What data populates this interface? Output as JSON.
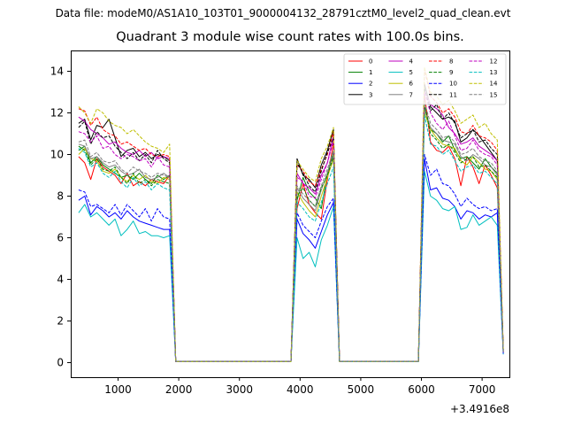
{
  "chart_data": {
    "type": "line",
    "suptitle": "Data file: modeM0/AS1A10_103T01_9000004132_28791cztM0_level2_quad_clean.evt",
    "title": "Quadrant 3 module wise count rates with 100.0s bins.",
    "xlabel": "",
    "ylabel": "",
    "x_offset_label": "+3.4916e8",
    "xlim": [
      220,
      7450
    ],
    "ylim": [
      -0.7,
      15.0
    ],
    "xticks": [
      1000,
      2000,
      3000,
      4000,
      5000,
      6000,
      7000
    ],
    "yticks": [
      0,
      2,
      4,
      6,
      8,
      10,
      12,
      14
    ],
    "legend_position": "top-right",
    "x": [
      350,
      450,
      550,
      650,
      750,
      850,
      950,
      1050,
      1150,
      1250,
      1350,
      1450,
      1550,
      1650,
      1750,
      1850,
      1950,
      2050,
      2250,
      2450,
      2650,
      2850,
      3050,
      3250,
      3450,
      3650,
      3850,
      3950,
      4050,
      4150,
      4250,
      4350,
      4450,
      4550,
      4650,
      4750,
      4950,
      5150,
      5350,
      5550,
      5750,
      5950,
      6050,
      6150,
      6250,
      6350,
      6450,
      6550,
      6650,
      6750,
      6850,
      6950,
      7050,
      7150,
      7250,
      7350
    ],
    "series": [
      {
        "name": "0",
        "color": "#ff0000",
        "dash": false,
        "values": [
          9.9,
          9.6,
          8.8,
          9.8,
          9.4,
          9.2,
          9.0,
          8.6,
          9.1,
          8.5,
          8.7,
          8.5,
          8.8,
          8.7,
          8.6,
          9.0,
          0.05,
          0.05,
          0.05,
          0.05,
          0.05,
          0.05,
          0.05,
          0.05,
          0.05,
          0.05,
          0.05,
          7.4,
          8.6,
          7.6,
          7.2,
          6.9,
          8.8,
          10.6,
          0.05,
          0.05,
          0.05,
          0.05,
          0.05,
          0.05,
          0.05,
          0.05,
          12.9,
          10.6,
          10.2,
          10.1,
          10.4,
          9.8,
          8.5,
          9.9,
          9.4,
          8.6,
          9.5,
          9.0,
          8.4,
          0.5
        ]
      },
      {
        "name": "1",
        "color": "#008000",
        "dash": false,
        "values": [
          10.2,
          10.4,
          9.6,
          9.9,
          9.5,
          9.3,
          9.1,
          8.9,
          9.0,
          8.8,
          9.1,
          8.8,
          8.6,
          9.0,
          8.8,
          9.0,
          0.05,
          0.05,
          0.05,
          0.05,
          0.05,
          0.05,
          0.05,
          0.05,
          0.05,
          0.05,
          0.05,
          7.8,
          8.9,
          8.2,
          7.9,
          7.4,
          9.1,
          10.1,
          0.05,
          0.05,
          0.05,
          0.05,
          0.05,
          0.05,
          0.05,
          0.05,
          12.3,
          11.2,
          11.0,
          10.6,
          10.9,
          10.2,
          9.8,
          9.9,
          9.6,
          9.3,
          9.8,
          9.4,
          9.1,
          0.5
        ]
      },
      {
        "name": "2",
        "color": "#0000ff",
        "dash": false,
        "values": [
          7.8,
          8.0,
          7.1,
          7.5,
          7.3,
          7.0,
          7.2,
          6.9,
          7.3,
          7.0,
          6.8,
          6.7,
          6.6,
          6.5,
          6.4,
          6.4,
          0.05,
          0.05,
          0.05,
          0.05,
          0.05,
          0.05,
          0.05,
          0.05,
          0.05,
          0.05,
          0.05,
          6.9,
          6.2,
          5.9,
          5.5,
          6.3,
          7.1,
          7.7,
          0.05,
          0.05,
          0.05,
          0.05,
          0.05,
          0.05,
          0.05,
          0.05,
          9.8,
          8.3,
          8.4,
          7.9,
          7.8,
          7.5,
          6.9,
          7.3,
          7.2,
          6.9,
          7.1,
          7.0,
          7.2,
          0.4
        ]
      },
      {
        "name": "3",
        "color": "#000000",
        "dash": false,
        "values": [
          11.5,
          11.7,
          10.7,
          11.4,
          11.3,
          11.7,
          10.8,
          9.9,
          10.2,
          10.3,
          9.9,
          10.1,
          9.8,
          10.0,
          9.9,
          9.7,
          0.05,
          0.05,
          0.05,
          0.05,
          0.05,
          0.05,
          0.05,
          0.05,
          0.05,
          0.05,
          0.05,
          9.8,
          9.0,
          8.8,
          8.4,
          9.5,
          10.2,
          11.2,
          0.05,
          0.05,
          0.05,
          0.05,
          0.05,
          0.05,
          0.05,
          0.05,
          13.4,
          12.3,
          12.0,
          11.7,
          11.8,
          11.6,
          10.6,
          10.8,
          11.2,
          10.9,
          10.5,
          10.1,
          9.7,
          0.6
        ]
      },
      {
        "name": "4",
        "color": "#bf00bf",
        "dash": false,
        "values": [
          11.8,
          11.6,
          11.2,
          11.0,
          10.8,
          10.5,
          10.6,
          10.3,
          10.1,
          10.0,
          10.2,
          9.9,
          10.1,
          9.8,
          9.9,
          9.8,
          0.05,
          0.05,
          0.05,
          0.05,
          0.05,
          0.05,
          0.05,
          0.05,
          0.05,
          0.05,
          0.05,
          9.1,
          8.6,
          8.4,
          8.1,
          9.0,
          9.6,
          10.9,
          0.05,
          0.05,
          0.05,
          0.05,
          0.05,
          0.05,
          0.05,
          0.05,
          13.1,
          12.4,
          12.2,
          11.9,
          11.3,
          11.0,
          10.5,
          10.6,
          10.8,
          10.4,
          10.2,
          10.0,
          9.7,
          0.5
        ]
      },
      {
        "name": "5",
        "color": "#00bfbf",
        "dash": false,
        "values": [
          7.2,
          7.6,
          7.0,
          7.2,
          6.9,
          6.6,
          6.9,
          6.1,
          6.4,
          6.8,
          6.2,
          6.3,
          6.1,
          6.1,
          6.0,
          6.1,
          0.05,
          0.05,
          0.05,
          0.05,
          0.05,
          0.05,
          0.05,
          0.05,
          0.05,
          0.05,
          0.05,
          6.0,
          5.0,
          5.3,
          4.6,
          5.9,
          6.6,
          7.5,
          0.05,
          0.05,
          0.05,
          0.05,
          0.05,
          0.05,
          0.05,
          0.05,
          9.2,
          8.0,
          7.8,
          7.4,
          7.3,
          7.5,
          6.4,
          6.5,
          7.1,
          6.6,
          6.8,
          7.0,
          6.6,
          0.4
        ]
      },
      {
        "name": "6",
        "color": "#bfbf00",
        "dash": false,
        "values": [
          10.0,
          10.3,
          9.8,
          9.7,
          9.2,
          9.1,
          9.3,
          8.9,
          8.7,
          9.0,
          8.8,
          9.0,
          8.7,
          8.6,
          8.9,
          8.8,
          0.05,
          0.05,
          0.05,
          0.05,
          0.05,
          0.05,
          0.05,
          0.05,
          0.05,
          0.05,
          0.05,
          8.2,
          7.7,
          7.3,
          7.0,
          8.0,
          8.9,
          9.8,
          0.05,
          0.05,
          0.05,
          0.05,
          0.05,
          0.05,
          0.05,
          0.05,
          12.0,
          11.2,
          10.8,
          10.5,
          10.4,
          10.3,
          9.7,
          9.5,
          9.9,
          9.6,
          9.3,
          9.2,
          8.8,
          0.5
        ]
      },
      {
        "name": "7",
        "color": "#808080",
        "dash": false,
        "values": [
          10.5,
          10.4,
          9.8,
          9.9,
          9.6,
          9.4,
          9.5,
          9.2,
          9.0,
          9.1,
          9.3,
          8.9,
          8.8,
          8.9,
          9.1,
          8.9,
          0.05,
          0.05,
          0.05,
          0.05,
          0.05,
          0.05,
          0.05,
          0.05,
          0.05,
          0.05,
          0.05,
          8.4,
          7.9,
          7.6,
          7.3,
          8.3,
          9.1,
          10.0,
          0.05,
          0.05,
          0.05,
          0.05,
          0.05,
          0.05,
          0.05,
          0.05,
          12.2,
          11.3,
          11.0,
          10.7,
          10.6,
          10.5,
          9.9,
          9.7,
          10.0,
          9.8,
          9.5,
          9.4,
          9.0,
          0.5
        ]
      },
      {
        "name": "8",
        "color": "#ff0000",
        "dash": true,
        "values": [
          12.2,
          12.1,
          11.4,
          11.8,
          11.2,
          11.0,
          10.9,
          10.5,
          10.6,
          10.4,
          10.2,
          10.3,
          10.0,
          9.9,
          10.0,
          9.9,
          0.05,
          0.05,
          0.05,
          0.05,
          0.05,
          0.05,
          0.05,
          0.05,
          0.05,
          0.05,
          0.05,
          9.5,
          9.2,
          8.7,
          8.5,
          9.3,
          10.0,
          11.1,
          0.05,
          0.05,
          0.05,
          0.05,
          0.05,
          0.05,
          0.05,
          0.05,
          14.1,
          12.8,
          12.5,
          12.0,
          12.2,
          11.8,
          11.1,
          11.0,
          11.4,
          10.9,
          10.8,
          10.6,
          10.2,
          0.6
        ]
      },
      {
        "name": "9",
        "color": "#008000",
        "dash": true,
        "values": [
          10.4,
          10.2,
          9.5,
          9.8,
          9.3,
          9.2,
          9.4,
          8.9,
          8.6,
          9.1,
          8.6,
          8.8,
          8.5,
          8.8,
          8.7,
          8.6,
          0.05,
          0.05,
          0.05,
          0.05,
          0.05,
          0.05,
          0.05,
          0.05,
          0.05,
          0.05,
          0.05,
          8.0,
          8.4,
          7.8,
          7.5,
          8.4,
          9.0,
          9.9,
          0.05,
          0.05,
          0.05,
          0.05,
          0.05,
          0.05,
          0.05,
          0.05,
          12.4,
          11.0,
          10.7,
          10.3,
          10.5,
          10.1,
          9.6,
          9.8,
          9.9,
          9.4,
          9.5,
          9.2,
          8.9,
          0.5
        ]
      },
      {
        "name": "10",
        "color": "#0000ff",
        "dash": true,
        "values": [
          8.3,
          8.2,
          7.5,
          7.6,
          7.4,
          7.2,
          7.6,
          7.1,
          7.6,
          7.3,
          7.0,
          7.4,
          6.8,
          7.4,
          7.0,
          6.9,
          0.05,
          0.05,
          0.05,
          0.05,
          0.05,
          0.05,
          0.05,
          0.05,
          0.05,
          0.05,
          0.05,
          7.2,
          6.6,
          6.3,
          6.0,
          6.8,
          7.5,
          7.9,
          0.05,
          0.05,
          0.05,
          0.05,
          0.05,
          0.05,
          0.05,
          0.05,
          10.0,
          9.0,
          9.3,
          8.6,
          8.5,
          8.1,
          7.5,
          7.9,
          7.6,
          7.4,
          7.5,
          7.3,
          7.4,
          0.4
        ]
      },
      {
        "name": "11",
        "color": "#000000",
        "dash": true,
        "values": [
          11.3,
          11.6,
          10.5,
          11.1,
          10.8,
          10.9,
          10.4,
          10.1,
          9.8,
          10.1,
          9.7,
          10.0,
          9.6,
          10.2,
          9.8,
          9.6,
          0.05,
          0.05,
          0.05,
          0.05,
          0.05,
          0.05,
          0.05,
          0.05,
          0.05,
          0.05,
          0.05,
          9.6,
          9.1,
          8.5,
          8.2,
          9.2,
          10.1,
          10.8,
          0.05,
          0.05,
          0.05,
          0.05,
          0.05,
          0.05,
          0.05,
          0.05,
          13.2,
          12.1,
          12.4,
          11.7,
          12.0,
          11.5,
          10.8,
          11.0,
          11.2,
          10.6,
          10.7,
          10.3,
          10.0,
          0.6
        ]
      },
      {
        "name": "12",
        "color": "#bf00bf",
        "dash": true,
        "values": [
          11.1,
          11.0,
          10.6,
          10.9,
          10.3,
          10.4,
          10.0,
          9.8,
          10.0,
          9.9,
          9.7,
          9.8,
          9.4,
          9.9,
          9.5,
          9.4,
          0.05,
          0.05,
          0.05,
          0.05,
          0.05,
          0.05,
          0.05,
          0.05,
          0.05,
          0.05,
          0.05,
          8.9,
          8.7,
          8.0,
          7.9,
          8.8,
          9.6,
          10.7,
          0.05,
          0.05,
          0.05,
          0.05,
          0.05,
          0.05,
          0.05,
          0.05,
          13.0,
          12.0,
          11.5,
          11.2,
          11.6,
          10.9,
          10.2,
          10.3,
          10.7,
          10.2,
          10.0,
          9.9,
          9.5,
          0.5
        ]
      },
      {
        "name": "13",
        "color": "#00bfbf",
        "dash": true,
        "values": [
          10.3,
          10.1,
          9.4,
          9.6,
          9.1,
          8.9,
          9.2,
          8.7,
          8.4,
          8.9,
          8.5,
          8.7,
          8.3,
          8.6,
          8.4,
          8.3,
          0.05,
          0.05,
          0.05,
          0.05,
          0.05,
          0.05,
          0.05,
          0.05,
          0.05,
          0.05,
          0.05,
          7.7,
          7.4,
          7.0,
          6.8,
          7.7,
          8.6,
          9.4,
          0.05,
          0.05,
          0.05,
          0.05,
          0.05,
          0.05,
          0.05,
          0.05,
          11.9,
          10.5,
          10.4,
          10.0,
          10.2,
          9.7,
          9.2,
          9.4,
          9.5,
          9.1,
          9.2,
          8.9,
          8.6,
          0.5
        ]
      },
      {
        "name": "14",
        "color": "#bfbf00",
        "dash": true,
        "values": [
          12.3,
          12.0,
          11.5,
          12.2,
          12.0,
          11.6,
          11.4,
          11.3,
          11.0,
          11.2,
          10.9,
          10.6,
          10.4,
          10.3,
          10.1,
          10.5,
          0.05,
          0.05,
          0.05,
          0.05,
          0.05,
          0.05,
          0.05,
          0.05,
          0.05,
          0.05,
          0.05,
          9.7,
          9.3,
          8.9,
          8.7,
          9.8,
          10.4,
          11.3,
          0.05,
          0.05,
          0.05,
          0.05,
          0.05,
          0.05,
          0.05,
          0.05,
          14.2,
          13.0,
          12.8,
          12.4,
          12.6,
          12.1,
          11.5,
          11.7,
          11.9,
          11.3,
          11.5,
          11.0,
          10.7,
          0.6
        ]
      },
      {
        "name": "15",
        "color": "#808080",
        "dash": true,
        "values": [
          10.6,
          10.7,
          9.9,
          10.1,
          9.7,
          9.6,
          9.7,
          9.3,
          9.1,
          9.4,
          9.2,
          9.1,
          8.9,
          9.1,
          9.0,
          8.9,
          0.05,
          0.05,
          0.05,
          0.05,
          0.05,
          0.05,
          0.05,
          0.05,
          0.05,
          0.05,
          0.05,
          8.5,
          8.1,
          7.8,
          7.5,
          8.5,
          9.3,
          10.2,
          0.05,
          0.05,
          0.05,
          0.05,
          0.05,
          0.05,
          0.05,
          0.05,
          12.5,
          11.5,
          11.2,
          10.8,
          10.9,
          10.6,
          10.0,
          10.1,
          10.3,
          9.9,
          9.7,
          9.6,
          9.2,
          0.5
        ]
      }
    ]
  }
}
